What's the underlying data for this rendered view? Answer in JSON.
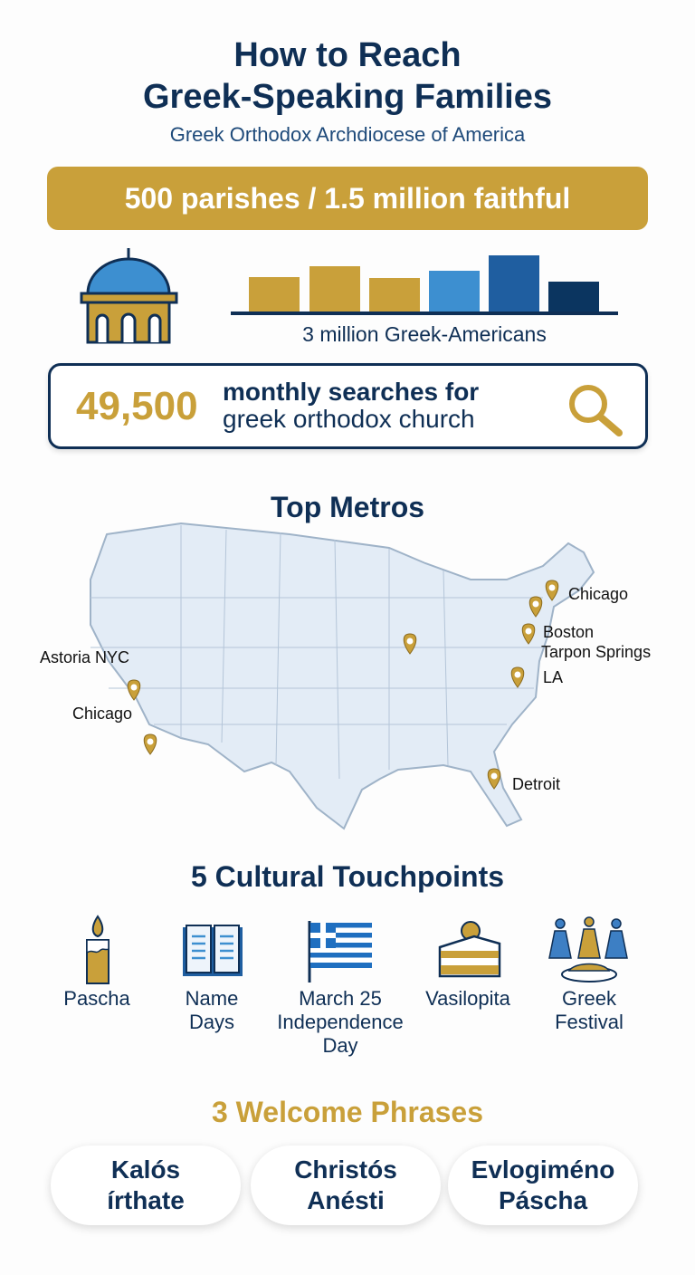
{
  "header": {
    "title_line1": "How to Reach",
    "title_line2": "Greek-Speaking Families",
    "subtitle": "Greek Orthodox Archdiocese of America"
  },
  "banner": {
    "text": "500 parishes / 1.5 million faithful"
  },
  "population": {
    "caption": "3 million Greek-Americans",
    "icon": "church-dome-icon",
    "colors": {
      "gold": "#c9a03a",
      "light_blue": "#3d8fd0",
      "blue": "#1f5ea0",
      "navy": "#0b3560"
    }
  },
  "search": {
    "number": "49,500",
    "line1": "monthly searches for",
    "line2": "greek orthodox church",
    "icon": "magnifier-icon"
  },
  "metros": {
    "title": "Top Metros",
    "labels": [
      "Astoria NYC",
      "Chicago",
      "Chicago",
      "Boston",
      "Tarpon Springs",
      "LA",
      "Detroit"
    ]
  },
  "touchpoints": {
    "title": "5 Cultural Touchpoints",
    "items": [
      {
        "icon": "candle-icon",
        "line1": "Pascha",
        "line2": "",
        "line3": ""
      },
      {
        "icon": "book-icon",
        "line1": "Name",
        "line2": "Days",
        "line3": ""
      },
      {
        "icon": "greek-flag-icon",
        "line1": "March 25",
        "line2": "Independence",
        "line3": "Day"
      },
      {
        "icon": "cake-icon",
        "line1": "Vasilopita",
        "line2": "",
        "line3": ""
      },
      {
        "icon": "dancers-icon",
        "line1": "Greek",
        "line2": "Festival",
        "line3": ""
      }
    ]
  },
  "phrases": {
    "title": "3 Welcome Phrases",
    "items": [
      {
        "line1": "Kalós",
        "line2": "írthate"
      },
      {
        "line1": "Christós",
        "line2": "Anésti"
      },
      {
        "line1": "Evlogiméno",
        "line2": "Páscha"
      }
    ]
  }
}
